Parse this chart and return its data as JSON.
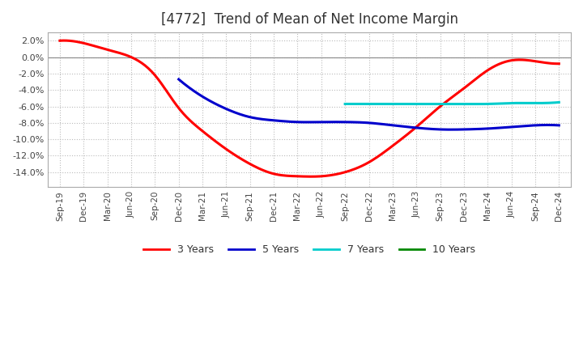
{
  "title": "[4772]  Trend of Mean of Net Income Margin",
  "title_fontsize": 12,
  "ylim": [
    -0.158,
    0.03
  ],
  "yticks": [
    0.02,
    0.0,
    -0.02,
    -0.04,
    -0.06,
    -0.08,
    -0.1,
    -0.12,
    -0.14
  ],
  "background_color": "#ffffff",
  "plot_bg_color": "#ffffff",
  "grid_color": "#bbbbbb",
  "x_labels": [
    "Sep-19",
    "Dec-19",
    "Mar-20",
    "Jun-20",
    "Sep-20",
    "Dec-20",
    "Mar-21",
    "Jun-21",
    "Sep-21",
    "Dec-21",
    "Mar-22",
    "Jun-22",
    "Sep-22",
    "Dec-22",
    "Mar-23",
    "Jun-23",
    "Sep-23",
    "Dec-23",
    "Mar-24",
    "Jun-24",
    "Sep-24",
    "Dec-24"
  ],
  "series": {
    "3 Years": {
      "color": "#ff0000",
      "linewidth": 2.2,
      "data_x": [
        0,
        1,
        2,
        3,
        4,
        5,
        6,
        7,
        8,
        9,
        10,
        11,
        12,
        13,
        14,
        15,
        16,
        17,
        18,
        19,
        20,
        21
      ],
      "data_y": [
        0.02,
        0.017,
        0.009,
        0.0,
        -0.022,
        -0.062,
        -0.09,
        -0.112,
        -0.13,
        -0.142,
        -0.145,
        -0.145,
        -0.14,
        -0.128,
        -0.108,
        -0.085,
        -0.06,
        -0.038,
        -0.016,
        -0.004,
        -0.005,
        -0.008
      ]
    },
    "5 Years": {
      "color": "#0000cc",
      "linewidth": 2.2,
      "data_x": [
        5,
        6,
        7,
        8,
        9,
        10,
        11,
        12,
        13,
        14,
        15,
        16,
        17,
        18,
        19,
        20,
        21
      ],
      "data_y": [
        -0.027,
        -0.048,
        -0.063,
        -0.073,
        -0.077,
        -0.079,
        -0.079,
        -0.079,
        -0.08,
        -0.083,
        -0.086,
        -0.088,
        -0.088,
        -0.087,
        -0.085,
        -0.083,
        -0.083
      ]
    },
    "7 Years": {
      "color": "#00cccc",
      "linewidth": 2.2,
      "data_x": [
        12,
        13,
        14,
        15,
        16,
        17,
        18,
        19,
        20,
        21
      ],
      "data_y": [
        -0.057,
        -0.057,
        -0.057,
        -0.057,
        -0.057,
        -0.057,
        -0.057,
        -0.056,
        -0.056,
        -0.055
      ]
    },
    "10 Years": {
      "color": "#008800",
      "linewidth": 2.2,
      "data_x": [],
      "data_y": []
    }
  },
  "legend_colors": {
    "3 Years": "#ff0000",
    "5 Years": "#0000cc",
    "7 Years": "#00cccc",
    "10 Years": "#008800"
  }
}
